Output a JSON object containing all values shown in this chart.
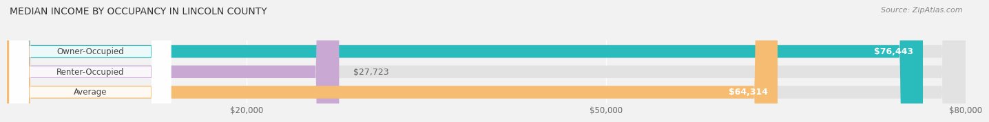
{
  "title": "MEDIAN INCOME BY OCCUPANCY IN LINCOLN COUNTY",
  "source": "Source: ZipAtlas.com",
  "categories": [
    "Owner-Occupied",
    "Renter-Occupied",
    "Average"
  ],
  "values": [
    76443,
    27723,
    64314
  ],
  "bar_colors": [
    "#2abcbd",
    "#c9a8d4",
    "#f5bc72"
  ],
  "value_labels": [
    "$76,443",
    "$27,723",
    "$64,314"
  ],
  "xlim_min": 0,
  "xlim_max": 80000,
  "xticks": [
    20000,
    50000,
    80000
  ],
  "xticklabels": [
    "$20,000",
    "$50,000",
    "$80,000"
  ],
  "background_color": "#f2f2f2",
  "bar_bg_color": "#e2e2e2",
  "label_bg_color": "#ffffff",
  "title_fontsize": 10,
  "source_fontsize": 8,
  "tick_fontsize": 8.5,
  "cat_fontsize": 8.5,
  "val_fontsize": 9
}
